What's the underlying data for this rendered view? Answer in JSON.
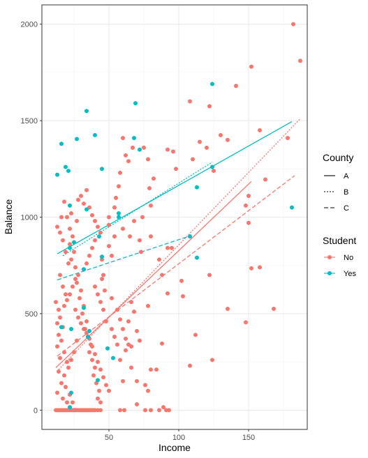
{
  "chart_data": {
    "type": "scatter",
    "xlabel": "Income",
    "ylabel": "Balance",
    "xlim": [
      2,
      192
    ],
    "ylim": [
      -100,
      2100
    ],
    "x_ticks": [
      50,
      100,
      150
    ],
    "y_ticks": [
      0,
      500,
      1000,
      1500,
      2000
    ],
    "grid": true,
    "legend_position": "right",
    "legends": {
      "county": {
        "title": "County",
        "entries": [
          "A",
          "B",
          "C"
        ]
      },
      "student": {
        "title": "Student",
        "entries": [
          "No",
          "Yes"
        ]
      }
    },
    "colors": {
      "No": "#F8766D",
      "Yes": "#00BFC4"
    },
    "linetypes": {
      "A": "solid",
      "B": "dotted",
      "C": "dashed"
    },
    "series": [
      {
        "name": "No",
        "points": [
          [
            182,
            2000
          ],
          [
            187,
            1810
          ],
          [
            152,
            1780
          ],
          [
            141,
            1680
          ],
          [
            108,
            1600
          ],
          [
            122,
            1575
          ],
          [
            130,
            1425
          ],
          [
            135,
            1400
          ],
          [
            115,
            1390
          ],
          [
            158,
            1450
          ],
          [
            178,
            1410
          ],
          [
            96,
            1340
          ],
          [
            120,
            1360
          ],
          [
            125,
            1240
          ],
          [
            110,
            1300
          ],
          [
            162,
            1195
          ],
          [
            148,
            1060
          ],
          [
            150,
            1110
          ],
          [
            150,
            970
          ],
          [
            152,
            735
          ],
          [
            158,
            740
          ],
          [
            135,
            525
          ],
          [
            148,
            455
          ],
          [
            168,
            525
          ],
          [
            124,
            260
          ],
          [
            112,
            390
          ],
          [
            108,
            230
          ],
          [
            122,
            700
          ],
          [
            102,
            670
          ],
          [
            103,
            590
          ],
          [
            98,
            1250
          ],
          [
            92,
            1350
          ],
          [
            78,
            1300
          ],
          [
            75,
            1360
          ],
          [
            67,
            1360
          ],
          [
            60,
            1410
          ],
          [
            62,
            1320
          ],
          [
            64,
            1290
          ],
          [
            58,
            1230
          ],
          [
            57,
            1160
          ],
          [
            55,
            1100
          ],
          [
            54,
            1050
          ],
          [
            50,
            1000
          ],
          [
            50,
            960
          ],
          [
            54,
            900
          ],
          [
            50,
            850
          ],
          [
            52,
            800
          ],
          [
            45,
            780
          ],
          [
            46,
            700
          ],
          [
            60,
            940
          ],
          [
            65,
            900
          ],
          [
            68,
            980
          ],
          [
            74,
            1000
          ],
          [
            80,
            1060
          ],
          [
            82,
            1200
          ],
          [
            79,
            1150
          ],
          [
            80,
            900
          ],
          [
            72,
            880
          ],
          [
            73,
            820
          ],
          [
            86,
            780
          ],
          [
            88,
            700
          ],
          [
            92,
            840
          ],
          [
            95,
            840
          ],
          [
            92,
            605
          ],
          [
            78,
            540
          ],
          [
            66,
            560
          ],
          [
            68,
            510
          ],
          [
            64,
            460
          ],
          [
            70,
            410
          ],
          [
            72,
            360
          ],
          [
            66,
            330
          ],
          [
            62,
            310
          ],
          [
            58,
            260
          ],
          [
            66,
            220
          ],
          [
            60,
            150
          ],
          [
            70,
            150
          ],
          [
            76,
            130
          ],
          [
            88,
            345
          ],
          [
            84,
            210
          ],
          [
            80,
            210
          ],
          [
            78,
            100
          ],
          [
            70,
            30
          ],
          [
            58,
            0
          ],
          [
            61,
            0
          ],
          [
            76,
            0
          ],
          [
            80,
            0
          ],
          [
            86,
            0
          ],
          [
            91,
            0
          ],
          [
            89,
            15
          ],
          [
            93,
            0
          ],
          [
            12,
            0
          ],
          [
            13,
            0
          ],
          [
            14,
            0
          ],
          [
            15,
            0
          ],
          [
            16,
            0
          ],
          [
            17,
            0
          ],
          [
            18,
            0
          ],
          [
            19,
            0
          ],
          [
            20,
            0
          ],
          [
            21,
            0
          ],
          [
            22,
            0
          ],
          [
            23,
            0
          ],
          [
            24,
            0
          ],
          [
            25,
            0
          ],
          [
            26,
            0
          ],
          [
            27,
            0
          ],
          [
            28,
            0
          ],
          [
            29,
            0
          ],
          [
            30,
            0
          ],
          [
            31,
            0
          ],
          [
            32,
            0
          ],
          [
            33,
            0
          ],
          [
            34,
            0
          ],
          [
            35,
            0
          ],
          [
            36,
            0
          ],
          [
            37,
            0
          ],
          [
            38,
            0
          ],
          [
            39,
            0
          ],
          [
            40,
            0
          ],
          [
            42,
            0
          ],
          [
            44,
            0
          ],
          [
            12,
            560
          ],
          [
            14,
            520
          ],
          [
            15,
            480
          ],
          [
            13,
            450
          ],
          [
            17,
            430
          ],
          [
            14,
            390
          ],
          [
            16,
            360
          ],
          [
            13,
            330
          ],
          [
            18,
            300
          ],
          [
            15,
            270
          ],
          [
            20,
            250
          ],
          [
            14,
            200
          ],
          [
            18,
            180
          ],
          [
            16,
            140
          ],
          [
            19,
            120
          ],
          [
            13,
            90
          ],
          [
            22,
            80
          ],
          [
            17,
            60
          ],
          [
            20,
            40
          ],
          [
            24,
            40
          ],
          [
            13,
            950
          ],
          [
            16,
            1000
          ],
          [
            18,
            1080
          ],
          [
            20,
            1000
          ],
          [
            22,
            940
          ],
          [
            24,
            900
          ],
          [
            22,
            860
          ],
          [
            25,
            820
          ],
          [
            23,
            780
          ],
          [
            26,
            740
          ],
          [
            28,
            700
          ],
          [
            27,
            660
          ],
          [
            30,
            620
          ],
          [
            29,
            580
          ],
          [
            32,
            540
          ],
          [
            31,
            500
          ],
          [
            34,
            460
          ],
          [
            33,
            420
          ],
          [
            35,
            380
          ],
          [
            37,
            340
          ],
          [
            36,
            300
          ],
          [
            38,
            260
          ],
          [
            40,
            220
          ],
          [
            39,
            180
          ],
          [
            41,
            140
          ],
          [
            43,
            100
          ],
          [
            42,
            60
          ],
          [
            44,
            40
          ],
          [
            28,
            1090
          ],
          [
            30,
            1110
          ],
          [
            32,
            1070
          ],
          [
            34,
            1140
          ],
          [
            36,
            1050
          ],
          [
            38,
            1010
          ],
          [
            40,
            980
          ],
          [
            42,
            950
          ],
          [
            44,
            920
          ],
          [
            40,
            880
          ],
          [
            38,
            840
          ],
          [
            36,
            800
          ],
          [
            34,
            760
          ],
          [
            32,
            730
          ],
          [
            26,
            680
          ],
          [
            24,
            640
          ],
          [
            22,
            600
          ],
          [
            20,
            570
          ],
          [
            18,
            540
          ],
          [
            26,
            520
          ],
          [
            28,
            480
          ],
          [
            30,
            450
          ],
          [
            32,
            420
          ],
          [
            34,
            400
          ],
          [
            36,
            370
          ],
          [
            38,
            330
          ],
          [
            40,
            290
          ],
          [
            42,
            250
          ],
          [
            44,
            210
          ],
          [
            46,
            170
          ],
          [
            48,
            130
          ],
          [
            50,
            100
          ],
          [
            52,
            420
          ],
          [
            54,
            380
          ],
          [
            56,
            340
          ],
          [
            48,
            460
          ],
          [
            46,
            520
          ],
          [
            44,
            560
          ],
          [
            42,
            600
          ],
          [
            40,
            640
          ],
          [
            45,
            680
          ],
          [
            47,
            620
          ],
          [
            52,
            580
          ],
          [
            56,
            520
          ],
          [
            58,
            470
          ],
          [
            60,
            420
          ],
          [
            62,
            370
          ],
          [
            64,
            340
          ],
          [
            27,
            360
          ],
          [
            25,
            300
          ],
          [
            23,
            260
          ],
          [
            21,
            220
          ],
          [
            19,
            600
          ],
          [
            17,
            640
          ],
          [
            15,
            700
          ],
          [
            21,
            760
          ],
          [
            19,
            820
          ],
          [
            17,
            880
          ],
          [
            15,
            920
          ],
          [
            23,
            1020
          ],
          [
            27,
            980
          ]
        ]
      },
      {
        "name": "Yes",
        "points": [
          [
            124,
            1690
          ],
          [
            69,
            1590
          ],
          [
            34,
            1550
          ],
          [
            40,
            1425
          ],
          [
            27,
            1405
          ],
          [
            68,
            1410
          ],
          [
            16,
            1380
          ],
          [
            45,
            1250
          ],
          [
            19,
            1260
          ],
          [
            21,
            1240
          ],
          [
            72,
            1350
          ],
          [
            113,
            1155
          ],
          [
            124,
            1260
          ],
          [
            181,
            1050
          ],
          [
            57,
            1020
          ],
          [
            57,
            1000
          ],
          [
            43,
            900
          ],
          [
            108,
            900
          ],
          [
            113,
            790
          ],
          [
            22,
            840
          ],
          [
            25,
            870
          ],
          [
            32,
            730
          ],
          [
            45,
            795
          ],
          [
            22,
            1060
          ],
          [
            34,
            1040
          ],
          [
            13,
            1220
          ],
          [
            32,
            530
          ],
          [
            36,
            410
          ],
          [
            23,
            420
          ],
          [
            16,
            430
          ],
          [
            35,
            380
          ],
          [
            49,
            320
          ],
          [
            53,
            270
          ],
          [
            42,
            155
          ],
          [
            23,
            90
          ],
          [
            22,
            15
          ]
        ]
      }
    ],
    "fit_lines": [
      {
        "student": "No",
        "county": "A",
        "x": [
          12,
          152
        ],
        "y": [
          220,
          1185
        ]
      },
      {
        "student": "No",
        "county": "B",
        "x": [
          14,
          187
        ],
        "y": [
          210,
          1510
        ]
      },
      {
        "student": "No",
        "county": "C",
        "x": [
          13,
          183
        ],
        "y": [
          280,
          1215
        ]
      },
      {
        "student": "Yes",
        "county": "A",
        "x": [
          13,
          181
        ],
        "y": [
          810,
          1495
        ]
      },
      {
        "student": "Yes",
        "county": "B",
        "x": [
          17,
          124
        ],
        "y": [
          800,
          1285
        ]
      },
      {
        "student": "Yes",
        "county": "C",
        "x": [
          13,
          109
        ],
        "y": [
          675,
          905
        ]
      }
    ]
  }
}
